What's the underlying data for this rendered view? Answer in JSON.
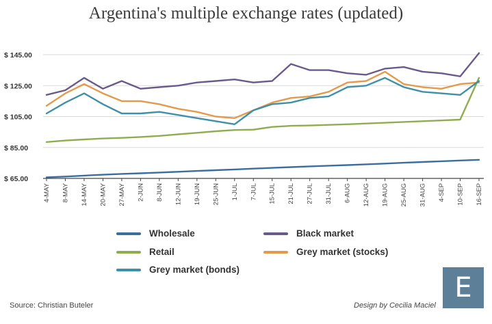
{
  "header": {
    "title": "Argentina's multiple exchange rates (updated)"
  },
  "footer": {
    "source": "Source: Christian Buteler",
    "design": "Design by Cecilia Maciel",
    "logo_letter": "E"
  },
  "colors": {
    "wholesale": "#3b6e9e",
    "retail": "#8fad4f",
    "black": "#6a5a8c",
    "grey_stocks": "#e49a4a",
    "grey_bonds": "#3e90a8",
    "grid": "#d9d9d9",
    "axis": "#444444",
    "logo_bg": "#5e7f98"
  },
  "chart_data": {
    "type": "line",
    "title": "Argentina's multiple exchange rates (updated)",
    "xlabel": "",
    "ylabel": "",
    "ylim": [
      65,
      145
    ],
    "yticks": [
      65,
      85,
      105,
      125,
      145
    ],
    "ytick_labels": [
      "$ 65.00",
      "$ 85.00",
      "$ 105.00",
      "$ 125.00",
      "$ 145.00"
    ],
    "x_tick_labels": [
      "4-MAY",
      "8-MAY",
      "14-MAY",
      "20-MAY",
      "27-MAY",
      "2-JUN",
      "8-JUN",
      "12-JUN",
      "19-JUN",
      "25-JUN",
      "1-JUL",
      "7-JUL",
      "15-JUL",
      "21-JUL",
      "27-JUL",
      "31-JUL",
      "6-AUG",
      "12-AUG",
      "19-AUG",
      "25-AUG",
      "31-AUG",
      "4-SEP",
      "10-SEP",
      "16-SEP"
    ],
    "grid": true,
    "legend_position": "bottom",
    "series": [
      {
        "name": "Wholesale",
        "color_key": "wholesale",
        "values": [
          65.7,
          66.2,
          66.8,
          67.4,
          67.9,
          68.3,
          68.8,
          69.3,
          69.8,
          70.3,
          70.8,
          71.3,
          71.8,
          72.3,
          72.8,
          73.2,
          73.6,
          74.1,
          74.6,
          75.1,
          75.6,
          76.1,
          76.6,
          77.0
        ]
      },
      {
        "name": "Black market",
        "color_key": "black",
        "values": [
          119,
          122,
          130,
          123,
          128,
          123,
          124,
          125,
          127,
          128,
          129,
          127,
          128,
          139,
          135,
          135,
          133,
          132,
          136,
          137,
          134,
          133,
          131,
          146
        ]
      },
      {
        "name": "Retail",
        "color_key": "retail",
        "values": [
          88.5,
          89.5,
          90.2,
          90.8,
          91.2,
          91.8,
          92.5,
          93.5,
          94.5,
          95.5,
          96.3,
          96.5,
          98.3,
          99.0,
          99.2,
          99.6,
          100.0,
          100.5,
          101.0,
          101.5,
          102.0,
          102.5,
          103.0,
          130.0
        ]
      },
      {
        "name": "Grey market (stocks)",
        "color_key": "grey_stocks",
        "values": [
          112,
          120,
          126,
          120,
          115,
          115,
          113,
          110,
          108,
          105,
          104,
          109,
          114,
          117,
          118,
          121,
          127,
          128,
          134,
          126,
          124,
          123,
          126,
          127
        ]
      },
      {
        "name": "Grey market (bonds)",
        "color_key": "grey_bonds",
        "values": [
          107,
          114,
          120,
          113,
          107,
          107,
          108,
          106,
          104,
          102,
          100,
          109,
          113,
          114,
          117,
          118,
          124,
          125,
          130,
          124,
          121,
          120,
          119,
          128
        ]
      }
    ]
  }
}
